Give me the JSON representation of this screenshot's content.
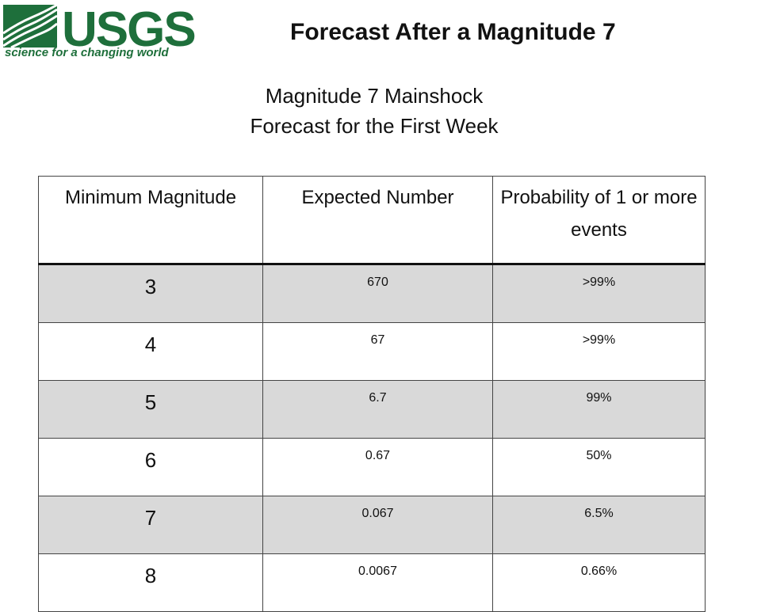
{
  "logo": {
    "wordmark": "USGS",
    "tagline": "science for a changing world",
    "color": "#1e6f3b"
  },
  "slide_title": "Forecast After a Magnitude 7",
  "table_title": [
    "Magnitude 7 Mainshock",
    "Forecast for the First Week"
  ],
  "table": {
    "headers": [
      "Minimum Magnitude",
      "Expected Number",
      "Probability of 1 or more events"
    ],
    "rows": [
      [
        "3",
        "670",
        ">99%"
      ],
      [
        "4",
        "67",
        ">99%"
      ],
      [
        "5",
        "6.7",
        "99%"
      ],
      [
        "6",
        "0.67",
        "50%"
      ],
      [
        "7",
        "0.067",
        "6.5%"
      ],
      [
        "8",
        "0.0067",
        "0.66%"
      ]
    ],
    "row_shade_color": "#d9d9d9"
  }
}
